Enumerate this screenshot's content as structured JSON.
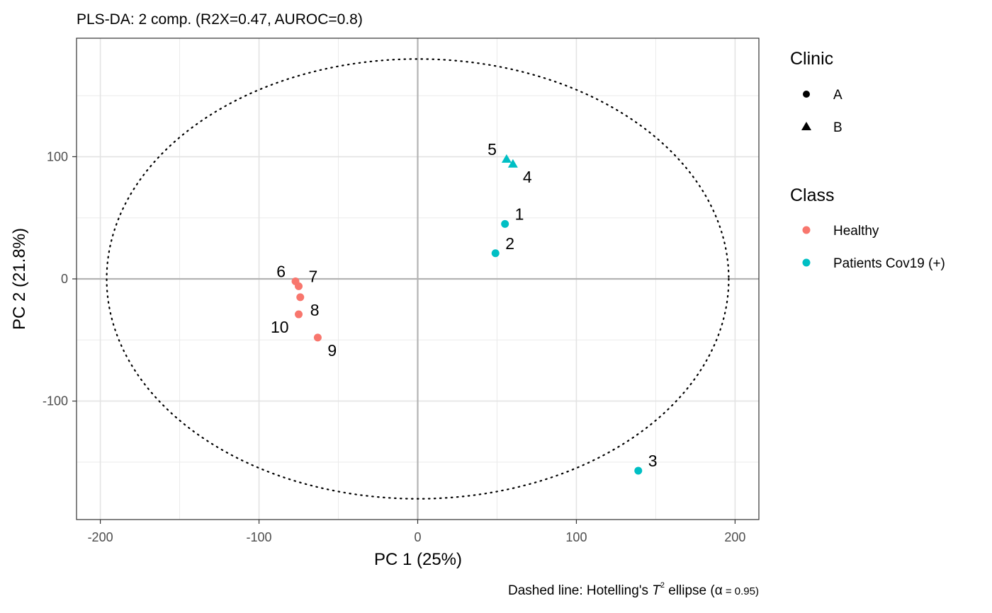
{
  "chart_data": {
    "type": "scatter",
    "title": "PLS-DA: 2 comp. (R2X=0.47, AUROC=0.8)",
    "xlabel": "PC 1 (25%)",
    "ylabel": "PC 2 (21.8%)",
    "caption": {
      "prefix": "Dashed line: Hotelling's ",
      "T": "T",
      "sup": "2",
      "middle": " ellipse (",
      "alpha": "α",
      "suffix": " = 0.95)"
    },
    "xlim": [
      -215,
      215
    ],
    "ylim": [
      -197,
      197
    ],
    "xticks": [
      -200,
      -100,
      0,
      100,
      200
    ],
    "xtick_labels": [
      "-200",
      "-100",
      "0",
      "100",
      "200"
    ],
    "yticks": [
      -100,
      0,
      100
    ],
    "ytick_labels": [
      "-100",
      "0",
      "100"
    ],
    "x_minor": [
      -150,
      -50,
      50,
      150
    ],
    "y_minor": [
      -150,
      -50,
      50,
      150
    ],
    "grid": true,
    "ellipse": {
      "center": [
        0,
        0
      ],
      "rx": 196,
      "ry": 180,
      "style": "dotted"
    },
    "legends": [
      {
        "title": "Clinic",
        "position": "right",
        "entries": [
          {
            "label": "A",
            "shape": "circle"
          },
          {
            "label": "B",
            "shape": "triangle"
          }
        ]
      },
      {
        "title": "Class",
        "position": "right",
        "entries": [
          {
            "label": "Healthy",
            "color": "#F8766D"
          },
          {
            "label": "Patients Cov19 (+)",
            "color": "#00BFC4"
          }
        ]
      }
    ],
    "points": [
      {
        "id": "1",
        "x": 55,
        "y": 45,
        "class": "Patients Cov19 (+)",
        "clinic": "A",
        "label_pos": "upper-right"
      },
      {
        "id": "2",
        "x": 49,
        "y": 21,
        "class": "Patients Cov19 (+)",
        "clinic": "A",
        "label_pos": "upper-right"
      },
      {
        "id": "3",
        "x": 139,
        "y": -157,
        "class": "Patients Cov19 (+)",
        "clinic": "A",
        "label_pos": "upper-right"
      },
      {
        "id": "4",
        "x": 60,
        "y": 94,
        "class": "Patients Cov19 (+)",
        "clinic": "B",
        "label_pos": "lower-right"
      },
      {
        "id": "5",
        "x": 56,
        "y": 98,
        "class": "Patients Cov19 (+)",
        "clinic": "B",
        "label_pos": "upper-left"
      },
      {
        "id": "6",
        "x": -77,
        "y": -2,
        "class": "Healthy",
        "clinic": "A",
        "label_pos": "upper-left"
      },
      {
        "id": "7",
        "x": -75,
        "y": -6,
        "class": "Healthy",
        "clinic": "A",
        "label_pos": "upper-right"
      },
      {
        "id": "8",
        "x": -74,
        "y": -15,
        "class": "Healthy",
        "clinic": "A",
        "label_pos": "lower-right"
      },
      {
        "id": "9",
        "x": -63,
        "y": -48,
        "class": "Healthy",
        "clinic": "A",
        "label_pos": "lower-right"
      },
      {
        "id": "10",
        "x": -75,
        "y": -29,
        "class": "Healthy",
        "clinic": "A",
        "label_pos": "lower-left"
      }
    ],
    "colors": {
      "Healthy": "#F8766D",
      "Patients Cov19 (+)": "#00BFC4"
    }
  }
}
